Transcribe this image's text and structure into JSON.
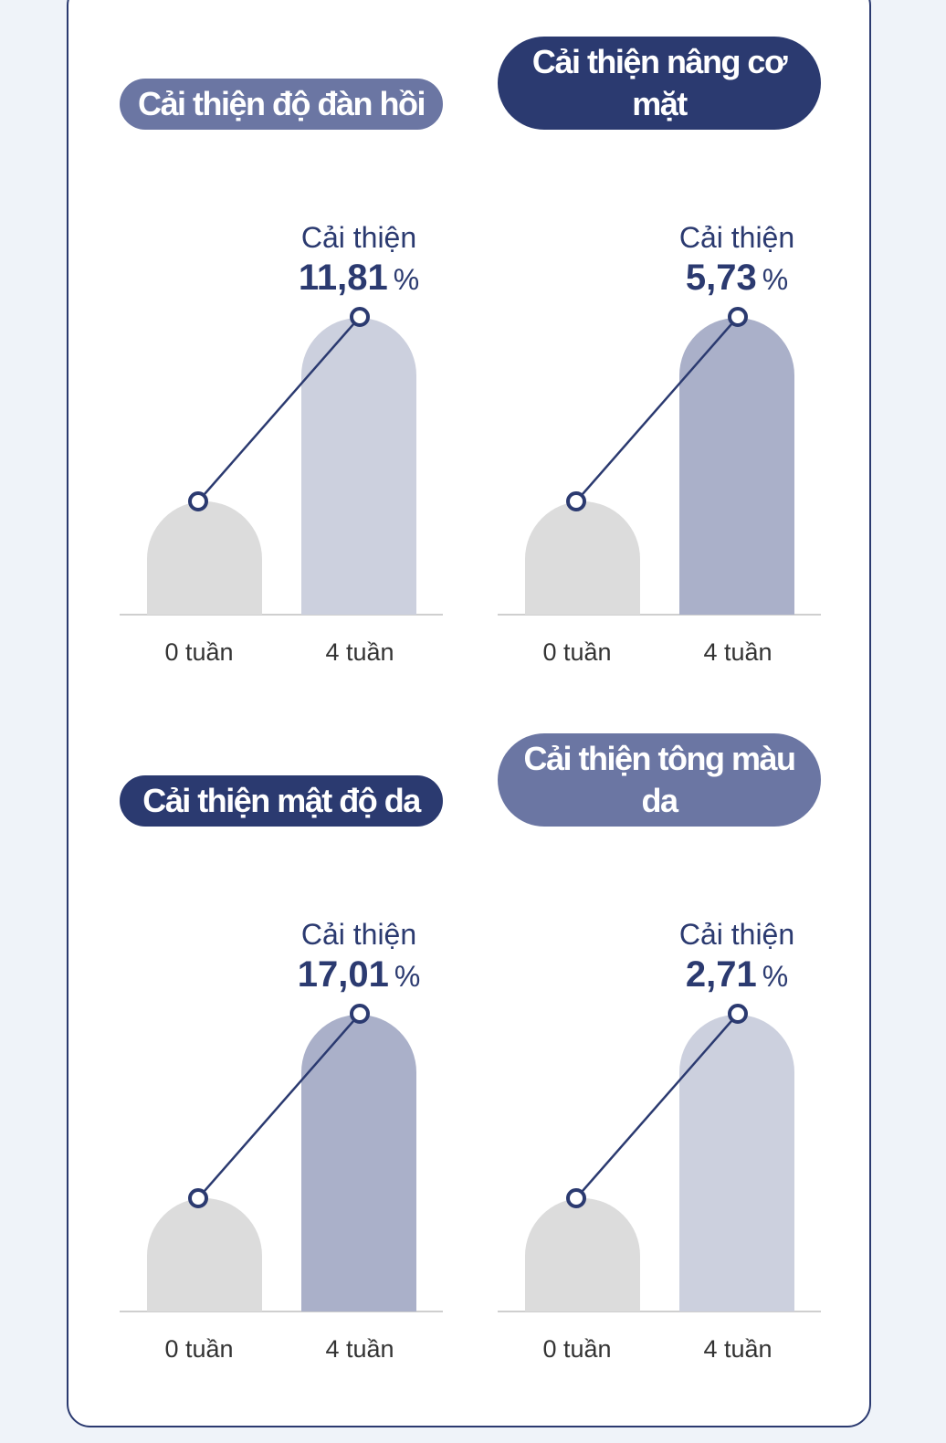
{
  "colors": {
    "page_bg": "#eff3f9",
    "card_border": "#2b3a70",
    "text_navy": "#2b3a70",
    "baseline_bar": "#dcdcdc",
    "axis": "#cfcfcf",
    "line": "#2b3a70"
  },
  "chart_data": [
    {
      "type": "bar",
      "title": "Cải thiện độ đàn hồi",
      "title_bg": "#6b76a3",
      "title_shape": "short",
      "categories": [
        "0 tuần",
        "4 tuần"
      ],
      "values": [
        0,
        11.81
      ],
      "bar_colors": [
        "#dcdcdc",
        "#ccd0de"
      ],
      "annotation": {
        "prefix": "Cải thiện",
        "value": "11,81",
        "unit": "%"
      }
    },
    {
      "type": "bar",
      "title": "Cải thiện nâng cơ mặt",
      "title_bg": "#2b3a70",
      "title_shape": "tall",
      "categories": [
        "0 tuần",
        "4 tuần"
      ],
      "values": [
        0,
        5.73
      ],
      "bar_colors": [
        "#dcdcdc",
        "#aab0c9"
      ],
      "annotation": {
        "prefix": "Cải thiện",
        "value": "5,73",
        "unit": "%"
      }
    },
    {
      "type": "bar",
      "title": "Cải thiện mật độ da",
      "title_bg": "#2b3a70",
      "title_shape": "short",
      "categories": [
        "0 tuần",
        "4 tuần"
      ],
      "values": [
        0,
        17.01
      ],
      "bar_colors": [
        "#dcdcdc",
        "#aab0c9"
      ],
      "annotation": {
        "prefix": "Cải thiện",
        "value": "17,01",
        "unit": "%"
      }
    },
    {
      "type": "bar",
      "title": "Cải thiện tông màu da",
      "title_bg": "#6b76a3",
      "title_shape": "tall",
      "categories": [
        "0 tuần",
        "4 tuần"
      ],
      "values": [
        0,
        2.71
      ],
      "bar_colors": [
        "#dcdcdc",
        "#ccd0de"
      ],
      "annotation": {
        "prefix": "Cải thiện",
        "value": "2,71",
        "unit": "%"
      }
    }
  ]
}
